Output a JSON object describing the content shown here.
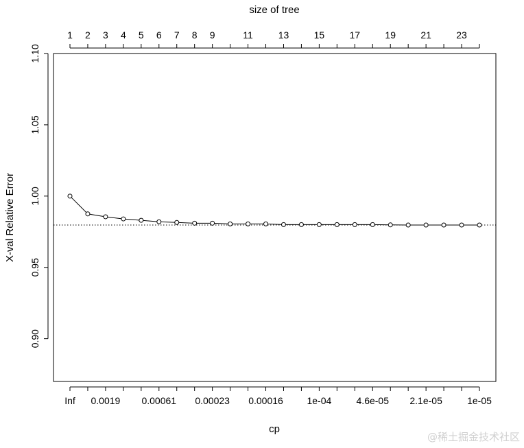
{
  "chart_data": {
    "type": "line",
    "top_axis_label": "size of tree",
    "xlabel": "cp",
    "ylabel": "X-val Relative Error",
    "ylim": [
      0.87,
      1.1
    ],
    "y_ticks": [
      0.9,
      0.95,
      1.0,
      1.05,
      1.1
    ],
    "y_tick_labels": [
      "0.90",
      "0.95",
      "1.00",
      "1.05",
      "1.10"
    ],
    "n_points": 24,
    "top_ticks": [
      1,
      2,
      3,
      4,
      5,
      6,
      7,
      8,
      9,
      10,
      11,
      12,
      13,
      14,
      15,
      16,
      17,
      18,
      19,
      20,
      21,
      22,
      23,
      24
    ],
    "top_tick_labels": {
      "1": "1",
      "2": "2",
      "3": "3",
      "4": "4",
      "5": "5",
      "6": "6",
      "7": "7",
      "8": "8",
      "9": "9",
      "11": "11",
      "13": "13",
      "15": "15",
      "17": "17",
      "19": "19",
      "21": "21",
      "23": "23"
    },
    "bottom_ticks": [
      1,
      2,
      3,
      4,
      5,
      6,
      7,
      8,
      9,
      10,
      11,
      12,
      13,
      14,
      15,
      16,
      17,
      18,
      19,
      20,
      21,
      22,
      23,
      24
    ],
    "bottom_tick_labels": {
      "1": "Inf",
      "3": "0.0019",
      "6": "0.00061",
      "9": "0.00023",
      "12": "0.00016",
      "15": "1e-04",
      "18": "4.6e-05",
      "21": "2.1e-05",
      "24": "1e-05"
    },
    "values": [
      1.0,
      0.9875,
      0.9855,
      0.984,
      0.983,
      0.982,
      0.9815,
      0.981,
      0.981,
      0.9805,
      0.9805,
      0.9805,
      0.98,
      0.98,
      0.98,
      0.98,
      0.98,
      0.98,
      0.9798,
      0.9797,
      0.9797,
      0.9797,
      0.9797,
      0.9797
    ],
    "reference_line": 0.9797
  },
  "watermark": "@稀土掘金技术社区"
}
